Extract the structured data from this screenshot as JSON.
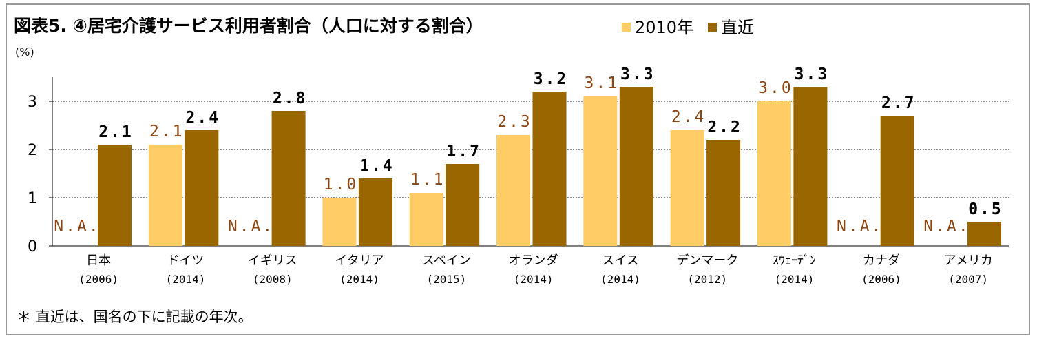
{
  "title": "図表5. ④居宅介護サービス利用者割合（人口に対する割合）",
  "unit_label": "(%)",
  "footnote": "＊ 直近は、国名の下に記載の年次。",
  "colors": {
    "2010": "#FFCC66",
    "latest": "#996600",
    "label_2010": "#8B4513",
    "label_latest": "#000000",
    "na_label": "#8B4513"
  },
  "chart_data": {
    "type": "bar",
    "title": "図表5. ④居宅介護サービス利用者割合（人口に対する割合）",
    "ylabel": "(%)",
    "ylim": [
      0,
      3.2
    ],
    "yticks": [
      0,
      1,
      2,
      3
    ],
    "grid": true,
    "legend_position": "top",
    "categories": [
      "日本",
      "ドイツ",
      "イギリス",
      "イタリア",
      "スペイン",
      "オランダ",
      "スイス",
      "デンマーク",
      "ｽｳｪｰﾃﾞﾝ",
      "カナダ",
      "アメリカ"
    ],
    "category_years": [
      "(2006)",
      "(2014)",
      "(2008)",
      "(2014)",
      "(2015)",
      "(2014)",
      "(2014)",
      "(2012)",
      "(2014)",
      "(2006)",
      "(2007)"
    ],
    "series": [
      {
        "name": "2010年",
        "values": [
          null,
          2.1,
          null,
          1.0,
          1.1,
          2.3,
          3.1,
          2.4,
          3.0,
          null,
          null
        ],
        "labels": [
          "N.A.",
          "2.1",
          "N.A.",
          "1.0",
          "1.1",
          "2.3",
          "3.1",
          "2.4",
          "3.0",
          "N.A.",
          "N.A."
        ]
      },
      {
        "name": "直近",
        "values": [
          2.1,
          2.4,
          2.8,
          1.4,
          1.7,
          3.2,
          3.3,
          2.2,
          3.3,
          2.7,
          0.5
        ],
        "labels": [
          "2.1",
          "2.4",
          "2.8",
          "1.4",
          "1.7",
          "3.2",
          "3.3",
          "2.2",
          "3.3",
          "2.7",
          "0.5"
        ]
      }
    ]
  }
}
